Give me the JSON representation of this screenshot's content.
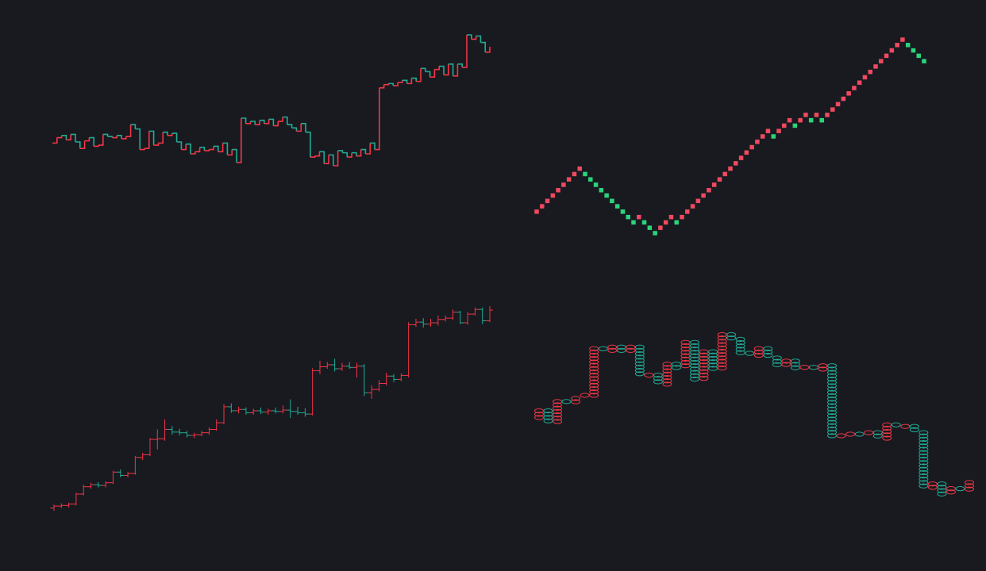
{
  "colors": {
    "background": "#181a20",
    "up": "#f23645",
    "down": "#22ab94",
    "bright_up": "#ef4a5f",
    "bright_down": "#2bd47b"
  },
  "chart_data": [
    {
      "type": "line",
      "style": "step",
      "direction_colored": true,
      "values": [
        47.5,
        48,
        48.2,
        47.8,
        48.3,
        47.6,
        47,
        47.7,
        48,
        47.2,
        47.3,
        48.3,
        48.1,
        48,
        48.2,
        47.9,
        48.1,
        49.2,
        48.8,
        46.9,
        47,
        48.6,
        47.3,
        47.5,
        48.5,
        48.2,
        48.4,
        47.6,
        46.9,
        47.4,
        46.5,
        46.7,
        47.1,
        46.8,
        46.9,
        47.2,
        46.7,
        47.5,
        46.4,
        46.9,
        45.7,
        49.8,
        49.3,
        49.5,
        49.2,
        49.6,
        49.3,
        49.7,
        49.1,
        49.5,
        49.9,
        49.2,
        48.9,
        48.6,
        49.3,
        48.5,
        46.2,
        46.3,
        46.7,
        45.6,
        46.4,
        45.4,
        46.8,
        46.6,
        46.2,
        46.6,
        46.3,
        46.9,
        46.5,
        47.5,
        46.9,
        52.6,
        52.9,
        53,
        52.8,
        53.1,
        53.3,
        53,
        53.5,
        53.2,
        54.4,
        54.1,
        53.6,
        54.3,
        54.6,
        53.8,
        54.8,
        53.7,
        54.8,
        54.5,
        57.5,
        57.1,
        57.4,
        56.8,
        55.9,
        56.4
      ]
    },
    {
      "type": "scatter",
      "style": "point-and-figure",
      "values": [
        40,
        41,
        42,
        43,
        44,
        45,
        46,
        47,
        48,
        47,
        46,
        45,
        44,
        43,
        42,
        41,
        40,
        39,
        38,
        39,
        38,
        37,
        36,
        37,
        38,
        39,
        38,
        39,
        40,
        41,
        42,
        43,
        44,
        45,
        46,
        47,
        48,
        49,
        50,
        51,
        52,
        53,
        54,
        55,
        54,
        55,
        56,
        57,
        56,
        57,
        58,
        57,
        58,
        57,
        58,
        59,
        60,
        61,
        62,
        63,
        64,
        65,
        66,
        67,
        68,
        69,
        70,
        71,
        72,
        71,
        70,
        69,
        68
      ]
    },
    {
      "type": "line",
      "style": "range-bars",
      "direction_colored": true,
      "bars": [
        [
          100,
          100.5,
          99.6,
          100.3
        ],
        [
          100.3,
          100.7,
          100,
          100.4
        ],
        [
          100.4,
          100.8,
          100.1,
          100.6
        ],
        [
          100.6,
          102.3,
          100.4,
          102.1
        ],
        [
          102.1,
          103.5,
          101.9,
          103.2
        ],
        [
          103.2,
          103.8,
          102.9,
          103.5
        ],
        [
          103.5,
          103.9,
          103.1,
          103.4
        ],
        [
          103.4,
          104,
          103.1,
          103.8
        ],
        [
          103.8,
          105.6,
          103.6,
          105.4
        ],
        [
          105.4,
          105.8,
          104.6,
          104.9
        ],
        [
          104.9,
          105.4,
          104.6,
          105.2
        ],
        [
          105.2,
          107.8,
          105,
          107.6
        ],
        [
          107.6,
          108.3,
          107.2,
          108
        ],
        [
          108,
          110.5,
          107.8,
          110.3
        ],
        [
          110.3,
          111.8,
          108.8,
          110.4
        ],
        [
          110.4,
          113.3,
          110.1,
          111.8
        ],
        [
          111.8,
          112.3,
          111,
          111.4
        ],
        [
          111.4,
          111.9,
          110.9,
          111.3
        ],
        [
          111.3,
          111.6,
          110.6,
          110.9
        ],
        [
          110.9,
          111.3,
          110.5,
          111
        ],
        [
          111,
          111.6,
          110.8,
          111.3
        ],
        [
          111.3,
          112.1,
          111,
          111.8
        ],
        [
          111.8,
          113.3,
          111.6,
          112.8
        ],
        [
          112.8,
          115.6,
          112.6,
          115.2
        ],
        [
          115.2,
          115.7,
          114.3,
          114.6
        ],
        [
          114.6,
          115.2,
          114.2,
          114.8
        ],
        [
          114.8,
          115.1,
          114,
          114.3
        ],
        [
          114.3,
          114.9,
          114,
          114.6
        ],
        [
          114.6,
          115.1,
          114.1,
          114.4
        ],
        [
          114.4,
          114.9,
          114,
          114.6
        ],
        [
          114.6,
          115.1,
          114.2,
          114.5
        ],
        [
          114.5,
          115.4,
          114.2,
          114.7
        ],
        [
          114.7,
          116.3,
          113.5,
          114.5
        ],
        [
          114.5,
          115.2,
          114,
          114.3
        ],
        [
          114.3,
          115,
          113.7,
          114.1
        ],
        [
          114.1,
          121,
          113.9,
          120.6
        ],
        [
          120.6,
          122.1,
          120.1,
          121.2
        ],
        [
          121.2,
          121.9,
          120.9,
          121.5
        ],
        [
          121.5,
          122.4,
          120.5,
          120.9
        ],
        [
          120.9,
          121.8,
          120.6,
          121.3
        ],
        [
          121.3,
          121.9,
          120.9,
          121.1
        ],
        [
          121.1,
          121.8,
          119.6,
          121.3
        ],
        [
          121.3,
          121.6,
          116.8,
          117.3
        ],
        [
          117.3,
          118.4,
          116.4,
          117.8
        ],
        [
          117.8,
          119.2,
          117.5,
          118.7
        ],
        [
          118.7,
          120.3,
          118.4,
          119.8
        ],
        [
          119.8,
          120.1,
          118.9,
          119.3
        ],
        [
          119.3,
          120.2,
          119,
          119.9
        ],
        [
          119.9,
          127.9,
          119.6,
          127.5
        ],
        [
          127.5,
          128.4,
          127.2,
          127.9
        ],
        [
          127.9,
          128.5,
          127.1,
          127.6
        ],
        [
          127.6,
          128.4,
          127.2,
          127.8
        ],
        [
          127.8,
          128.9,
          127.4,
          128.3
        ],
        [
          128.3,
          128.9,
          128,
          128.5
        ],
        [
          128.5,
          129.8,
          128.2,
          129.4
        ],
        [
          129.4,
          129.6,
          127.6,
          127.8
        ],
        [
          127.8,
          129.4,
          127.5,
          129.1
        ],
        [
          129.1,
          130.1,
          128.9,
          129.8
        ],
        [
          129.8,
          130.1,
          127.6,
          128.1
        ],
        [
          128.1,
          130.3,
          127.9,
          129.7
        ]
      ]
    },
    {
      "type": "line",
      "style": "renko-circle-columns",
      "direction_colored": true,
      "values": [
        [
          71,
          71.6
        ],
        [
          71.6,
          70.8
        ],
        [
          70.8,
          72.2
        ],
        [
          72.2,
          72
        ],
        [
          72,
          72.4
        ],
        [
          72.4,
          72.6
        ],
        [
          72.6,
          75.6
        ],
        [
          75.6,
          75.4
        ],
        [
          75.4,
          75.7
        ],
        [
          75.7,
          75.4
        ],
        [
          75.4,
          75.7
        ],
        [
          75.7,
          73.8
        ],
        [
          73.8,
          73.9
        ],
        [
          73.9,
          73.3
        ],
        [
          73.3,
          74.6
        ],
        [
          74.6,
          74.3
        ],
        [
          74.3,
          76
        ],
        [
          76,
          73.5
        ],
        [
          73.5,
          75.4
        ],
        [
          75.4,
          74.3
        ],
        [
          74.3,
          76.5
        ],
        [
          76.5,
          76.2
        ],
        [
          76.2,
          75.3
        ],
        [
          75.3,
          75.1
        ],
        [
          75.1,
          75.6
        ],
        [
          75.6,
          75
        ],
        [
          75,
          74.4
        ],
        [
          74.4,
          74.8
        ],
        [
          74.8,
          74.3
        ],
        [
          74.3,
          74.4
        ],
        [
          74.4,
          74.2
        ],
        [
          74.2,
          74.5
        ],
        [
          74.5,
          69.8
        ],
        [
          69.8,
          70
        ],
        [
          70,
          70.1
        ],
        [
          70.1,
          70
        ],
        [
          70,
          70.2
        ],
        [
          70.2,
          69.8
        ],
        [
          69.8,
          70.7
        ],
        [
          70.7,
          70.5
        ],
        [
          70.5,
          70.6
        ],
        [
          70.6,
          70.2
        ],
        [
          70.2,
          66.6
        ],
        [
          66.6,
          66.9
        ],
        [
          66.9,
          66.2
        ],
        [
          66.2,
          66.6
        ],
        [
          66.6,
          66.5
        ],
        [
          66.5,
          67
        ]
      ]
    }
  ]
}
